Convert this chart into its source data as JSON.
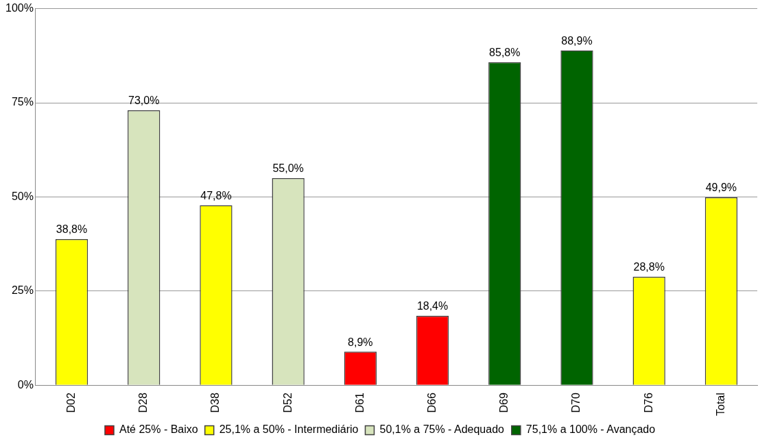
{
  "chart_data": {
    "type": "bar",
    "categories": [
      "D02",
      "D28",
      "D38",
      "D52",
      "D61",
      "D66",
      "D69",
      "D70",
      "D76",
      "Total"
    ],
    "stacked": true,
    "series": [
      {
        "name": "Até 25% - Baixo",
        "color": "#ff0000",
        "values": [
          null,
          null,
          null,
          null,
          8.9,
          18.4,
          null,
          null,
          null,
          null
        ],
        "value_labels": [
          null,
          null,
          null,
          null,
          "8,9%",
          "18,4%",
          null,
          null,
          null,
          null
        ]
      },
      {
        "name": "25,1% a 50% - Intermediário",
        "color": "#ffff00",
        "values": [
          38.8,
          null,
          47.8,
          null,
          null,
          null,
          null,
          null,
          28.8,
          49.9
        ],
        "value_labels": [
          "38,8%",
          null,
          "47,8%",
          null,
          null,
          null,
          null,
          null,
          "28,8%",
          "49,9%"
        ]
      },
      {
        "name": "50,1% a 75% - Adequado",
        "color": "#d7e4bd",
        "values": [
          null,
          73.0,
          null,
          55.0,
          null,
          null,
          null,
          null,
          null,
          null
        ],
        "value_labels": [
          null,
          "73,0%",
          null,
          "55,0%",
          null,
          null,
          null,
          null,
          null,
          null
        ]
      },
      {
        "name": "75,1% a 100% - Avançado",
        "color": "#006400",
        "values": [
          null,
          null,
          null,
          null,
          null,
          null,
          85.8,
          88.9,
          null,
          null
        ],
        "value_labels": [
          null,
          null,
          null,
          null,
          null,
          null,
          "85,8%",
          "88,9%",
          null,
          null
        ]
      }
    ],
    "ylim": [
      0,
      100
    ],
    "yticks": [
      {
        "value": 0,
        "label": "0%"
      },
      {
        "value": 25,
        "label": "25%"
      },
      {
        "value": 50,
        "label": "50%"
      },
      {
        "value": 75,
        "label": "75%"
      },
      {
        "value": 100,
        "label": "100%"
      }
    ],
    "grid": "y",
    "legend": "bottom"
  }
}
